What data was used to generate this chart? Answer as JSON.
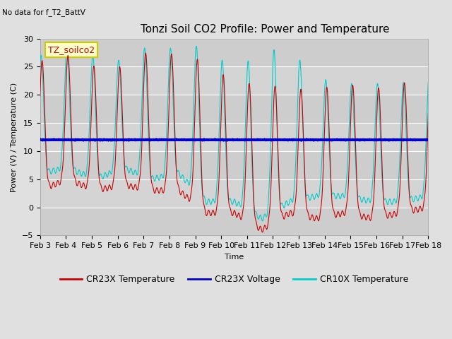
{
  "title": "Tonzi Soil CO2 Profile: Power and Temperature",
  "subtitle": "No data for f_T2_BattV",
  "ylabel": "Power (V) / Temperature (C)",
  "xlabel": "Time",
  "ylim": [
    -5,
    30
  ],
  "yticks": [
    -5,
    0,
    5,
    10,
    15,
    20,
    25,
    30
  ],
  "legend_label_cr23x_temp": "CR23X Temperature",
  "legend_label_cr23x_volt": "CR23X Voltage",
  "legend_label_cr10x_temp": "CR10X Temperature",
  "color_cr23x_temp": "#cc0000",
  "color_cr23x_volt": "#0000cc",
  "color_cr10x_temp": "#00cccc",
  "bg_color": "#e0e0e0",
  "plot_bg_color": "#d4d4d4",
  "annotation_text": "TZ_soilco2",
  "annotation_bg": "#ffffcc",
  "annotation_border": "#cccc00",
  "x_tick_labels": [
    "Feb 3",
    "Feb 4",
    "Feb 5",
    "Feb 6",
    "Feb 7",
    "Feb 8",
    "Feb 9",
    "Feb 10",
    "Feb 11",
    "Feb 12",
    "Feb 13",
    "Feb 14",
    "Feb 15",
    "Feb 16",
    "Feb 17",
    "Feb 18"
  ],
  "voltage_value": 12.0,
  "num_days": 15.0,
  "title_fontsize": 11,
  "axis_fontsize": 8,
  "tick_fontsize": 8,
  "grid_color": "#bbbbbb",
  "band_color": "#c8c8c8"
}
